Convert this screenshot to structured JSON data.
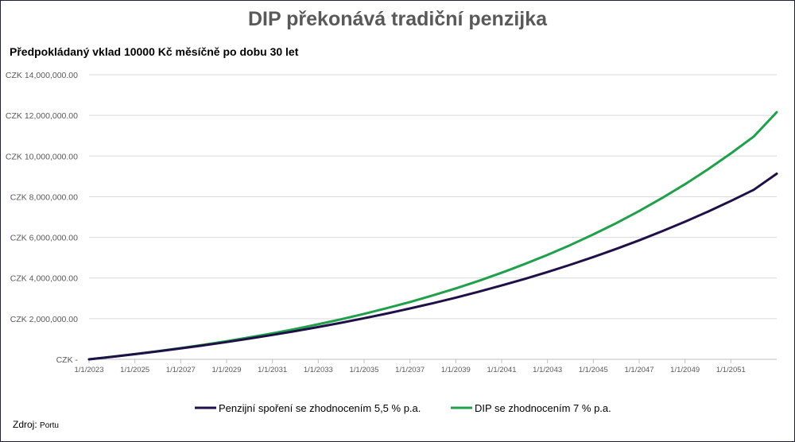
{
  "title": "DIP překonává tradiční penzijka",
  "subtitle": "Předpokládaný vklad 10000 Kč měsíčně po dobu 30 let",
  "source_label": "Zdroj:",
  "source_value": "Portu",
  "colors": {
    "series1": "#1f1048",
    "series2": "#1fa04a",
    "grid": "#d9d9d9",
    "axis": "#bfbfbf"
  },
  "chart_data": {
    "type": "line",
    "title": "DIP překonává tradiční penzijka",
    "subtitle": "Předpokládaný vklad 10000 Kč měsíčně po dobu 30 let",
    "xlabel": "",
    "ylabel": "",
    "x": [
      2023,
      2024,
      2025,
      2026,
      2027,
      2028,
      2029,
      2030,
      2031,
      2032,
      2033,
      2034,
      2035,
      2036,
      2037,
      2038,
      2039,
      2040,
      2041,
      2042,
      2043,
      2044,
      2045,
      2046,
      2047,
      2048,
      2049,
      2050,
      2051,
      2052,
      2053
    ],
    "x_tick_labels": [
      "1/1/2023",
      "1/1/2025",
      "1/1/2027",
      "1/1/2029",
      "1/1/2031",
      "1/1/2033",
      "1/1/2035",
      "1/1/2037",
      "1/1/2039",
      "1/1/2041",
      "1/1/2043",
      "1/1/2045",
      "1/1/2047",
      "1/1/2049",
      "1/1/2051"
    ],
    "x_tick_years": [
      2023,
      2025,
      2027,
      2029,
      2031,
      2033,
      2035,
      2037,
      2039,
      2041,
      2043,
      2045,
      2047,
      2049,
      2051
    ],
    "x_range": [
      2023,
      2053
    ],
    "y_tick_values": [
      0,
      2000000,
      4000000,
      6000000,
      8000000,
      10000000,
      12000000,
      14000000
    ],
    "y_tick_labels": [
      "CZK -",
      "CZK 2,000,000.00",
      "CZK 4,000,000.00",
      "CZK 6,000,000.00",
      "CZK 8,000,000.00",
      "CZK 10,000,000.00",
      "CZK 12,000,000.00",
      "CZK 14,000,000.00"
    ],
    "ylim": [
      0,
      14000000
    ],
    "grid": true,
    "legend_position": "bottom",
    "series": [
      {
        "name": "Penzijní spoření se zhodnocením 5,5 % p.a.",
        "values": [
          0,
          123000,
          253000,
          390000,
          535000,
          688000,
          849000,
          1020000,
          1199000,
          1389000,
          1588000,
          1798000,
          2020000,
          2254000,
          2501000,
          2762000,
          3036000,
          3326000,
          3632000,
          3955000,
          4295000,
          4655000,
          5034000,
          5433000,
          5855000,
          6301000,
          6771000,
          7266000,
          7789000,
          8341000,
          9130000
        ]
      },
      {
        "name": "DIP se zhodnocením 7 % p.a.",
        "values": [
          0,
          124000,
          257000,
          399000,
          552000,
          715000,
          890000,
          1078000,
          1279000,
          1494000,
          1725000,
          1971000,
          2235000,
          2518000,
          2820000,
          3144000,
          3490000,
          3861000,
          4258000,
          4683000,
          5137000,
          5623000,
          6143000,
          6700000,
          7296000,
          7934000,
          8616000,
          9346000,
          10127000,
          10963000,
          12160000
        ]
      }
    ]
  }
}
